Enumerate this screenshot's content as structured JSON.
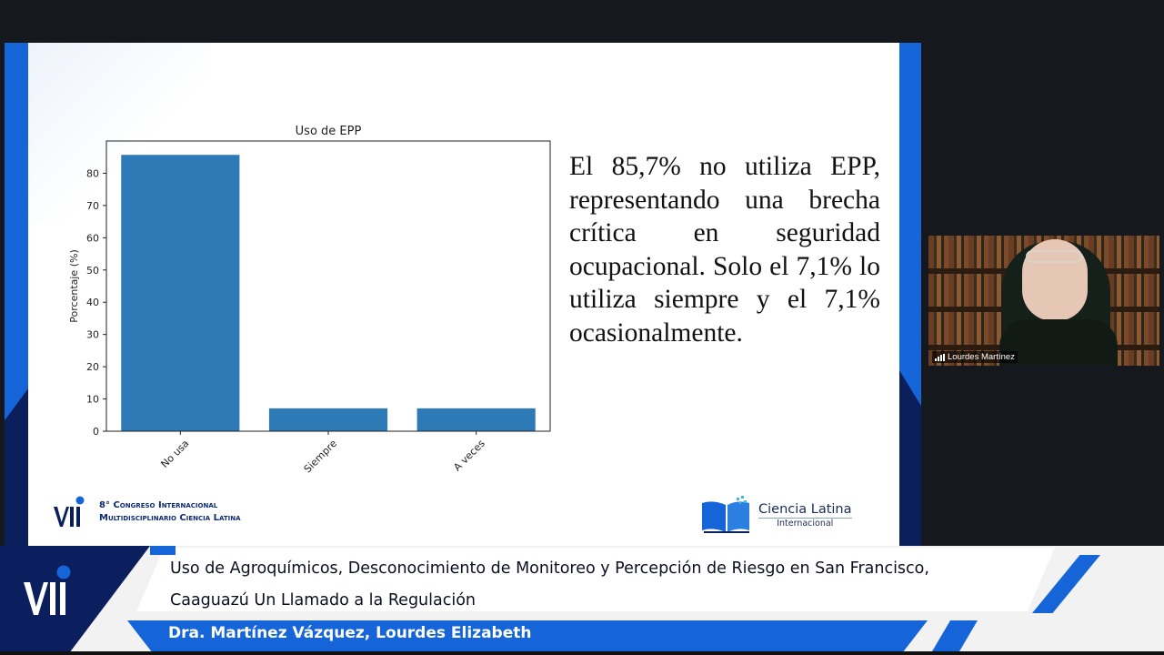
{
  "slide": {
    "text": "El 85,7% no utiliza EPP, representando una brecha crítica en seguridad ocupacional. Solo el 7,1% lo utiliza siempre y el 7,1% ocasionalmente.",
    "congress_line1": "8° Congreso Internacional",
    "congress_line2": "Multidisciplinario Ciencia Latina",
    "ciencia_title": "Ciencia Latina",
    "ciencia_subtitle": "Internacional",
    "chart_data": {
      "type": "bar",
      "title": "Uso de EPP",
      "ylabel": "Porcentaje (%)",
      "xlabel": "",
      "categories": [
        "No usa",
        "Siempre",
        "A veces"
      ],
      "values": [
        85.7,
        7.1,
        7.1
      ],
      "ylim": [
        0,
        90
      ],
      "yticks": [
        0,
        10,
        20,
        30,
        40,
        50,
        60,
        70,
        80
      ],
      "color": "#2e7ab6",
      "grid": false
    }
  },
  "webcam": {
    "participant_name": "Lourdes Martínez"
  },
  "lower_third": {
    "title_line1": "Uso de Agroquímicos, Desconocimiento de Monitoreo y Percepción de Riesgo en San Francisco,",
    "title_line2": "Caaguazú Un Llamado a la Regulación",
    "author": "Dra. Martínez Vázquez, Lourdes Elizabeth"
  },
  "colors": {
    "brand_blue": "#1565d8",
    "brand_navy": "#0b1e5e",
    "bar": "#2e7ab6"
  }
}
